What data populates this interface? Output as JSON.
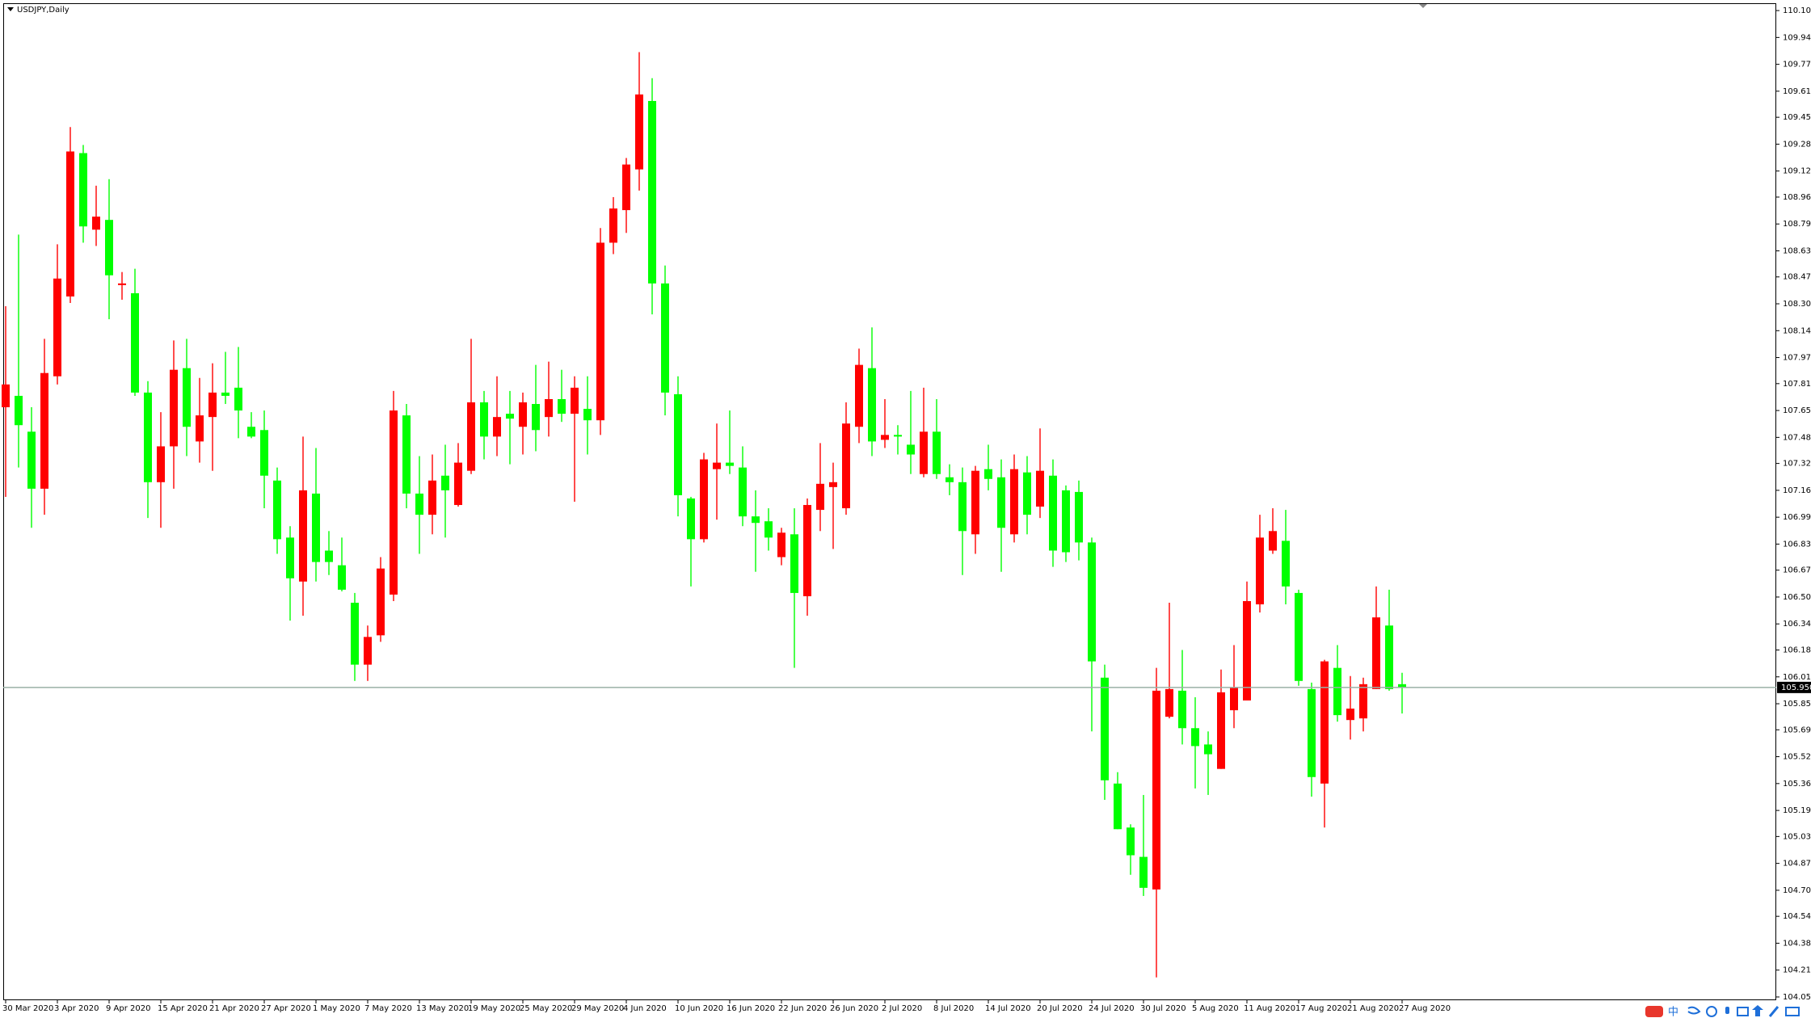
{
  "chart_data": {
    "type": "candlestick",
    "title": "USDJPY,Daily",
    "categories": [
      "30 Mar 2020",
      null,
      null,
      null,
      "3 Apr 2020",
      null,
      null,
      null,
      "9 Apr 2020",
      null,
      null,
      null,
      "15 Apr 2020",
      null,
      null,
      null,
      "21 Apr 2020",
      null,
      null,
      null,
      "27 Apr 2020",
      null,
      null,
      null,
      "1 May 2020",
      null,
      null,
      null,
      "7 May 2020",
      null,
      null,
      null,
      "13 May 2020",
      null,
      null,
      null,
      "19 May 2020",
      null,
      null,
      null,
      "25 May 2020",
      null,
      null,
      null,
      "29 May 2020",
      null,
      null,
      null,
      "4 Jun 2020",
      null,
      null,
      null,
      "10 Jun 2020",
      null,
      null,
      null,
      "16 Jun 2020",
      null,
      null,
      null,
      "22 Jun 2020",
      null,
      null,
      null,
      "26 Jun 2020",
      null,
      null,
      null,
      "2 Jul 2020",
      null,
      null,
      null,
      "8 Jul 2020",
      null,
      null,
      null,
      "14 Jul 2020",
      null,
      null,
      null,
      "20 Jul 2020",
      null,
      null,
      null,
      "24 Jul 2020",
      null,
      null,
      null,
      "30 Jul 2020",
      null,
      null,
      null,
      "5 Aug 2020",
      null,
      null,
      null,
      "11 Aug 2020",
      null,
      null,
      null,
      "17 Aug 2020",
      null,
      null,
      null,
      "21 Aug 2020",
      null,
      null,
      null,
      "27 Aug 2020"
    ],
    "open": [
      107.67,
      107.74,
      107.52,
      107.17,
      107.86,
      108.35,
      109.23,
      108.76,
      108.82,
      108.42,
      108.37,
      107.76,
      107.21,
      107.43,
      107.91,
      107.46,
      107.61,
      107.76,
      107.79,
      107.55,
      107.53,
      107.22,
      106.87,
      106.6,
      107.14,
      106.79,
      106.7,
      106.47,
      106.09,
      106.27,
      106.52,
      107.62,
      107.14,
      107.01,
      107.25,
      107.07,
      107.28,
      107.7,
      107.49,
      107.63,
      107.55,
      107.69,
      107.61,
      107.72,
      107.63,
      107.66,
      107.59,
      108.68,
      108.88,
      109.13,
      109.55,
      108.43,
      107.75,
      107.11,
      106.86,
      107.29,
      107.33,
      107.3,
      107.0,
      106.97,
      106.75,
      106.89,
      106.51,
      107.04,
      107.18,
      107.05,
      107.55,
      107.91,
      107.47,
      107.5,
      107.44,
      107.26,
      107.52,
      107.24,
      107.21,
      106.89,
      107.29,
      107.24,
      106.89,
      107.27,
      107.06,
      107.25,
      107.16,
      107.15,
      106.84,
      106.01,
      105.36,
      105.09,
      104.91,
      104.71,
      105.77,
      105.93,
      105.7,
      105.6,
      105.45,
      105.81,
      105.87,
      106.46,
      106.79,
      106.85,
      106.53,
      105.94,
      105.36,
      106.07,
      105.75,
      105.76,
      105.94,
      106.33,
      105.97
    ],
    "high": [
      108.29,
      108.73,
      107.67,
      108.09,
      108.67,
      109.39,
      109.28,
      109.03,
      109.07,
      108.5,
      108.52,
      107.83,
      107.64,
      108.08,
      108.09,
      107.85,
      107.94,
      108.01,
      108.04,
      107.64,
      107.65,
      107.3,
      106.94,
      107.49,
      107.42,
      106.91,
      106.87,
      106.53,
      106.33,
      106.75,
      107.77,
      107.69,
      107.37,
      107.38,
      107.44,
      107.45,
      108.09,
      107.77,
      107.86,
      107.77,
      107.76,
      107.93,
      107.95,
      107.9,
      107.86,
      107.86,
      108.77,
      108.96,
      109.2,
      109.85,
      109.69,
      108.54,
      107.86,
      107.12,
      107.39,
      107.57,
      107.65,
      107.43,
      107.16,
      107.05,
      106.93,
      107.05,
      107.11,
      107.45,
      107.33,
      107.7,
      108.03,
      108.16,
      107.72,
      107.56,
      107.77,
      107.79,
      107.72,
      107.32,
      107.3,
      107.31,
      107.44,
      107.35,
      107.38,
      107.37,
      107.54,
      107.35,
      107.19,
      107.22,
      106.87,
      106.09,
      105.43,
      105.11,
      105.29,
      106.07,
      106.47,
      106.18,
      105.89,
      105.68,
      106.06,
      106.21,
      106.6,
      107.01,
      107.05,
      107.04,
      106.55,
      105.98,
      106.12,
      106.21,
      106.02,
      106.01,
      106.57,
      106.55,
      106.04
    ],
    "low": [
      107.12,
      107.3,
      106.93,
      107.01,
      107.81,
      108.31,
      108.68,
      108.66,
      108.21,
      108.33,
      107.74,
      106.99,
      106.93,
      107.17,
      107.37,
      107.33,
      107.28,
      107.69,
      107.48,
      107.48,
      107.05,
      106.77,
      106.36,
      106.39,
      106.6,
      106.64,
      106.54,
      105.99,
      105.99,
      106.23,
      106.48,
      107.05,
      106.77,
      106.89,
      106.87,
      107.06,
      107.26,
      107.35,
      107.37,
      107.32,
      107.38,
      107.4,
      107.49,
      107.58,
      107.09,
      107.38,
      107.5,
      108.61,
      108.74,
      109.0,
      108.24,
      107.62,
      107.0,
      106.57,
      106.84,
      106.98,
      107.26,
      106.94,
      106.66,
      106.79,
      106.7,
      106.07,
      106.39,
      106.91,
      106.8,
      107.01,
      107.45,
      107.37,
      107.42,
      107.38,
      107.26,
      107.24,
      107.23,
      107.13,
      106.64,
      106.77,
      107.16,
      106.66,
      106.84,
      106.89,
      106.99,
      106.69,
      106.72,
      106.73,
      105.68,
      105.26,
      105.08,
      104.8,
      104.67,
      104.17,
      105.76,
      105.6,
      105.33,
      105.29,
      105.45,
      105.7,
      105.87,
      106.41,
      106.77,
      106.46,
      105.96,
      105.28,
      105.09,
      105.74,
      105.63,
      105.68,
      105.94,
      105.93,
      105.79
    ],
    "close": [
      107.81,
      107.56,
      107.17,
      107.88,
      108.46,
      109.24,
      108.78,
      108.84,
      108.48,
      108.43,
      107.76,
      107.21,
      107.43,
      107.9,
      107.55,
      107.62,
      107.76,
      107.74,
      107.65,
      107.49,
      107.25,
      106.86,
      106.62,
      107.16,
      106.72,
      106.72,
      106.55,
      106.09,
      106.26,
      106.68,
      107.65,
      107.14,
      107.01,
      107.22,
      107.16,
      107.33,
      107.7,
      107.49,
      107.61,
      107.6,
      107.7,
      107.53,
      107.72,
      107.63,
      107.79,
      107.59,
      108.68,
      108.89,
      109.16,
      109.59,
      108.43,
      107.76,
      107.13,
      106.86,
      107.35,
      107.33,
      107.31,
      107.0,
      106.96,
      106.87,
      106.9,
      106.53,
      107.07,
      107.2,
      107.21,
      107.57,
      107.93,
      107.46,
      107.5,
      107.49,
      107.38,
      107.52,
      107.26,
      107.21,
      106.91,
      107.28,
      107.23,
      106.93,
      107.29,
      107.01,
      107.28,
      106.79,
      106.78,
      106.84,
      106.11,
      105.38,
      105.08,
      104.92,
      104.72,
      105.93,
      105.94,
      105.7,
      105.59,
      105.54,
      105.92,
      105.95,
      106.48,
      106.87,
      106.91,
      106.57,
      105.99,
      105.4,
      106.11,
      105.78,
      105.82,
      105.97,
      106.38,
      105.94,
      105.95
    ],
    "up_color": "#ff0000",
    "down_color": "#00ff00",
    "ylim": [
      104.03,
      110.15
    ],
    "yticks": [
      110.105,
      {
        "value": 109.94,
        "label": "109.940"
      },
      109.775,
      {
        "value": 109.61,
        "label": "109.610"
      },
      {
        "value": 109.45,
        "label": "109.450"
      },
      109.285,
      {
        "value": 109.12,
        "label": "109.120"
      },
      {
        "value": 108.96,
        "label": "108.960"
      },
      108.795,
      {
        "value": 108.63,
        "label": "108.630"
      },
      {
        "value": 108.47,
        "label": "108.470"
      },
      108.305,
      {
        "value": 108.14,
        "label": "108.140"
      },
      107.975,
      107.815,
      {
        "value": 107.65,
        "label": "107.650"
      },
      107.485,
      107.325,
      {
        "value": 107.16,
        "label": "107.160"
      },
      106.995,
      {
        "value": 106.83,
        "label": "106.830"
      },
      {
        "value": 106.67,
        "label": "106.670"
      },
      106.505,
      {
        "value": 106.34,
        "label": "106.340"
      },
      {
        "value": 106.18,
        "label": "106.180"
      },
      106.015,
      {
        "value": 105.85,
        "label": "105.850"
      },
      {
        "value": 105.69,
        "label": "105.690"
      },
      105.525,
      {
        "value": 105.36,
        "label": "105.360"
      },
      105.195,
      105.035,
      {
        "value": 104.87,
        "label": "104.870"
      },
      104.705,
      104.545,
      {
        "value": 104.38,
        "label": "104.380"
      },
      104.215,
      {
        "value": 104.05,
        "label": "104.050"
      }
    ],
    "current_price": {
      "value": 105.95,
      "label": "105.950"
    },
    "grid": false
  },
  "taskbar": {
    "ime_indicator": "中"
  }
}
